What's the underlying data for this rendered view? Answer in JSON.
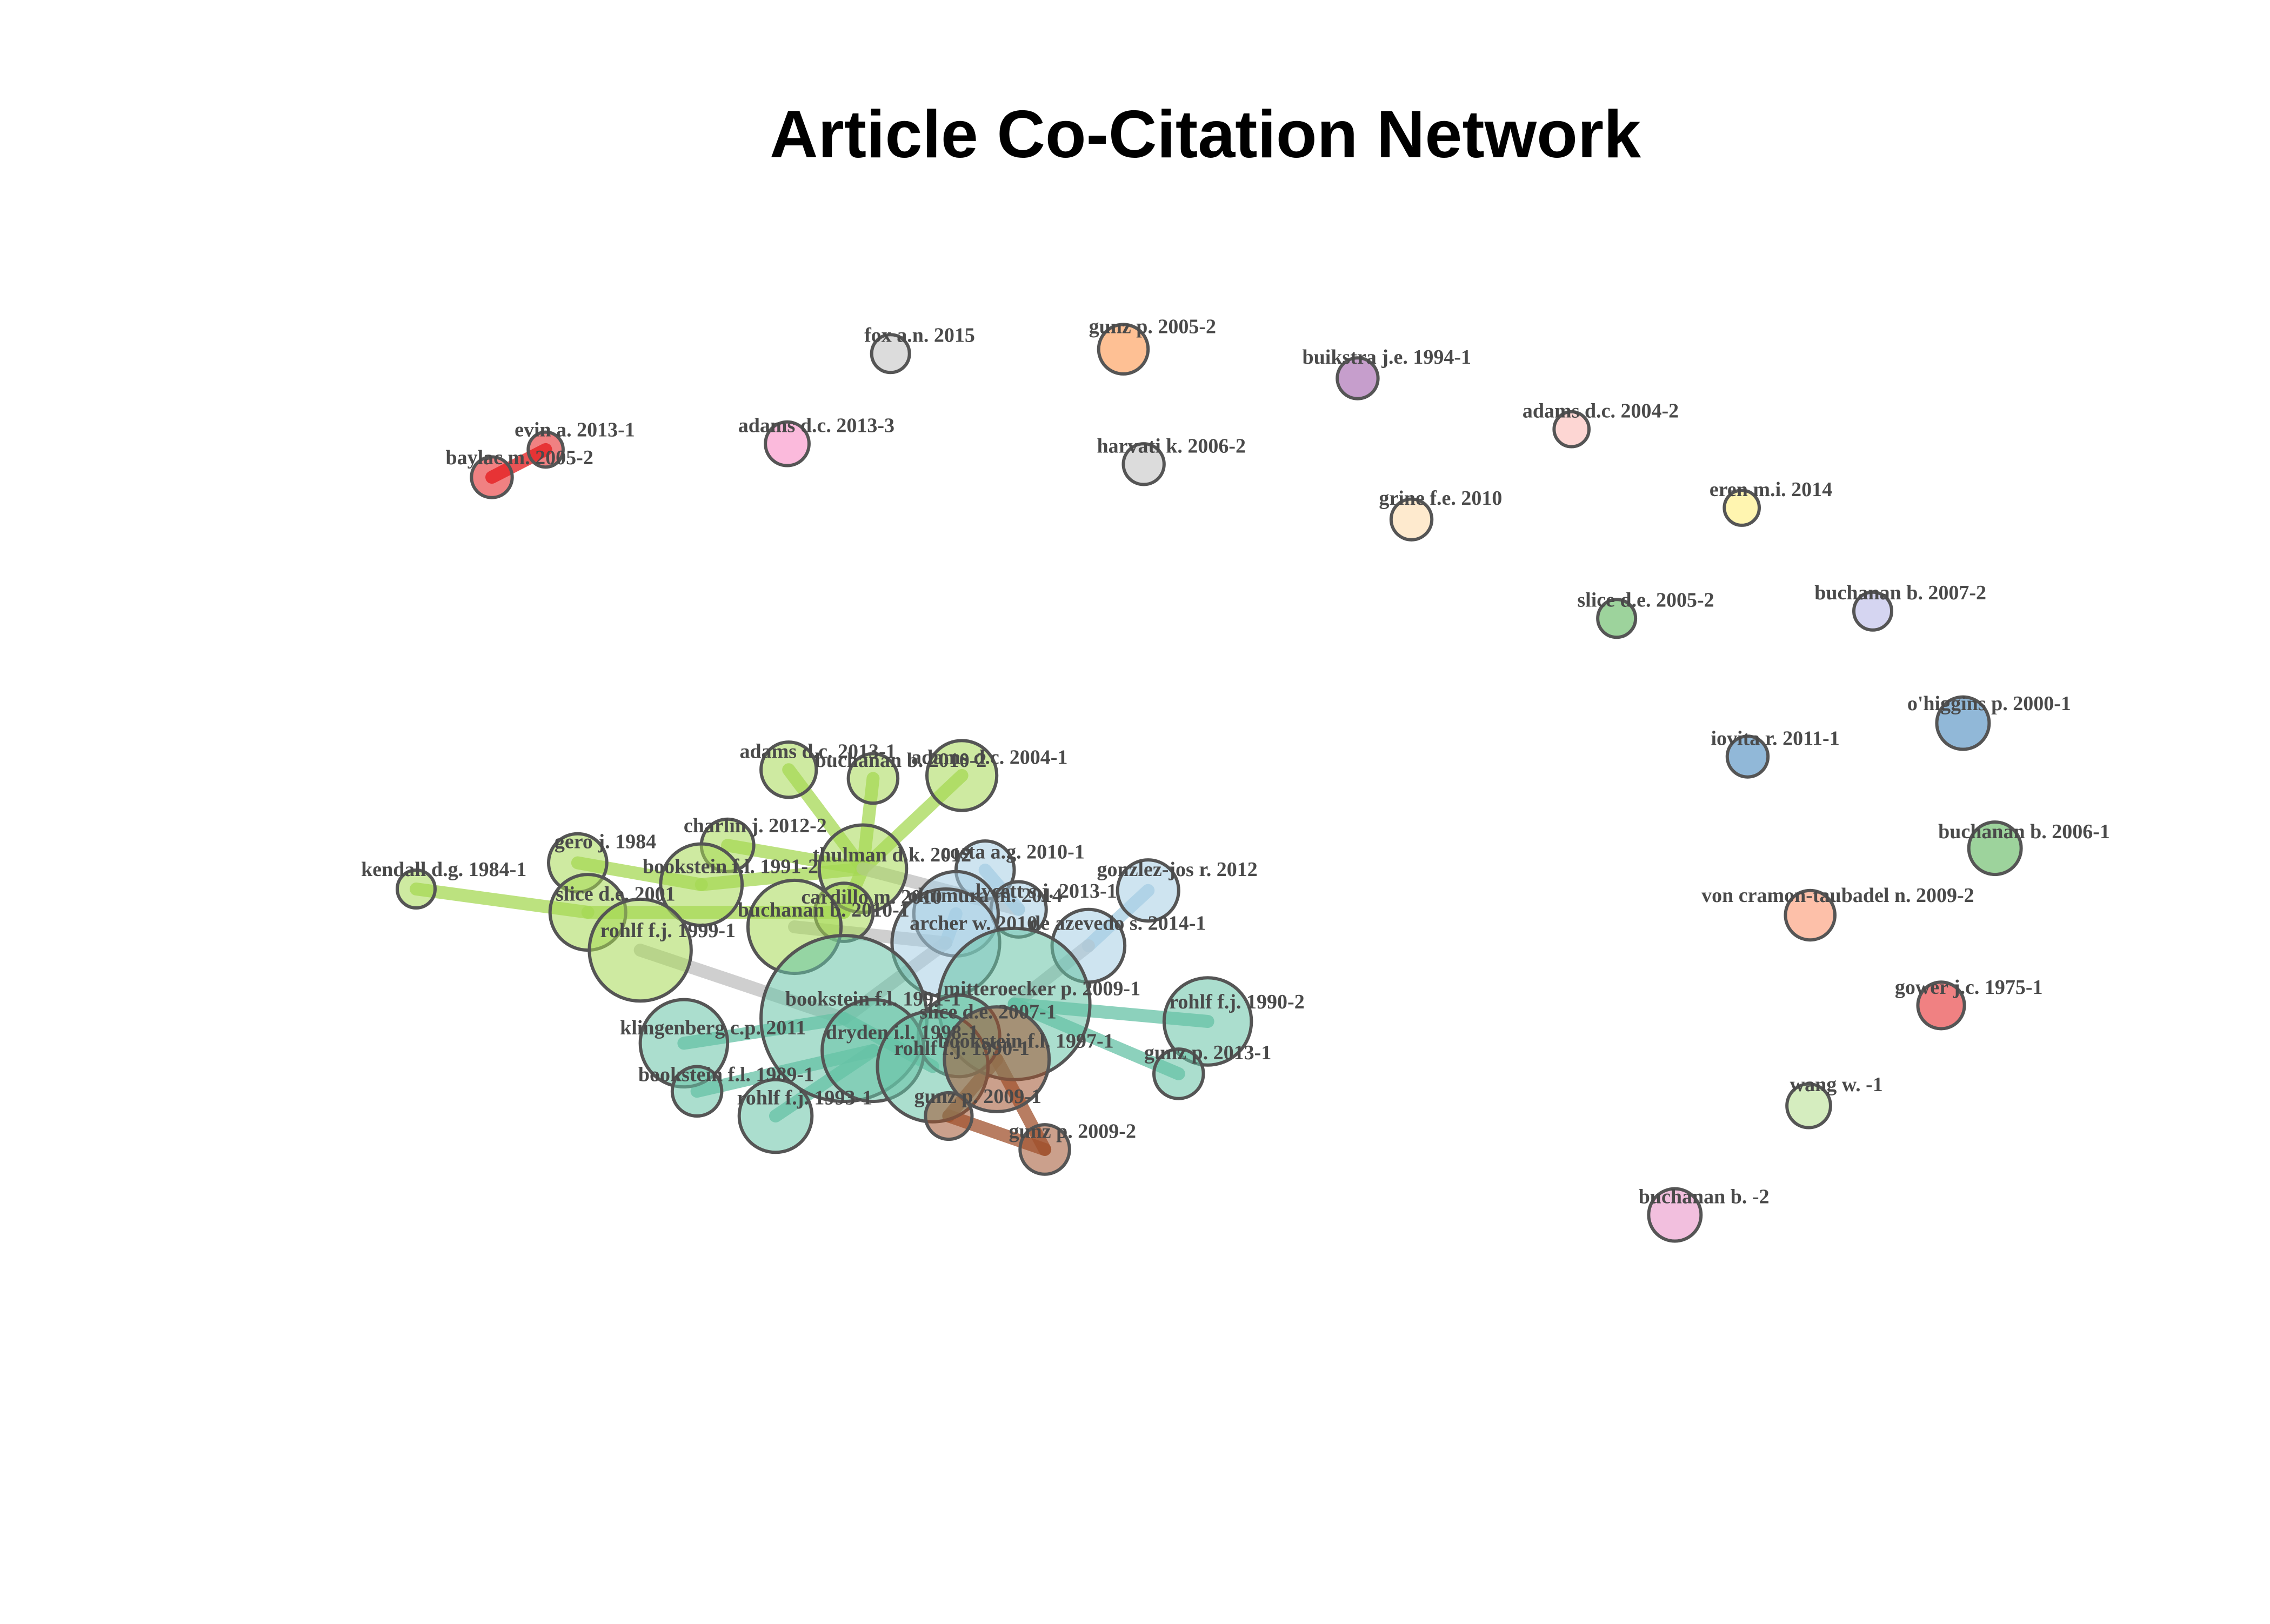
{
  "title": "Article Co-Citation Network",
  "nodes": [
    {
      "id": "evin-2013-1",
      "label": "evin a. 2013-1",
      "color": "#e41a1c"
    },
    {
      "id": "baylac-2005-2",
      "label": "baylac m. 2005-2",
      "color": "#e41a1c"
    },
    {
      "id": "adams-2013-3",
      "label": "adams d.c. 2013-3",
      "color": "#f781bf"
    },
    {
      "id": "fox-2015",
      "label": "fox a.n. 2015",
      "color": "#bfbfbf"
    },
    {
      "id": "gunz-2005-2",
      "label": "gunz p. 2005-2",
      "color": "#fd8d3c"
    },
    {
      "id": "harvati-2006-2",
      "label": "harvati k. 2006-2",
      "color": "#bfbfbf"
    },
    {
      "id": "buikstra-1994-1",
      "label": "buikstra j.e. 1994-1",
      "color": "#984ea3"
    },
    {
      "id": "adams-2004-2",
      "label": "adams d.c. 2004-2",
      "color": "#fbb4ae"
    },
    {
      "id": "grine-2010",
      "label": "grine f.e. 2010",
      "color": "#fed9a6"
    },
    {
      "id": "eren-2014",
      "label": "eren m.i. 2014",
      "color": "#ffed6f"
    },
    {
      "id": "slice-2005-2",
      "label": "slice d.e. 2005-2",
      "color": "#4daf4a"
    },
    {
      "id": "buchanan-2007-2",
      "label": "buchanan b. 2007-2",
      "color": "#b3b3e6"
    },
    {
      "id": "ohiggins-2000-1",
      "label": "o'higgins p. 2000-1",
      "color": "#377eb8"
    },
    {
      "id": "iovita-2011-1",
      "label": "iovita r. 2011-1",
      "color": "#377eb8"
    },
    {
      "id": "buchanan-2006-1",
      "label": "buchanan b. 2006-1",
      "color": "#4daf4a"
    },
    {
      "id": "voncramon-2009-2",
      "label": "von cramon-taubadel n. 2009-2",
      "color": "#fc8d62"
    },
    {
      "id": "gower-1975-1",
      "label": "gower j.c. 1975-1",
      "color": "#e41a1c"
    },
    {
      "id": "wang-1",
      "label": "wang w. -1",
      "color": "#b2df8a"
    },
    {
      "id": "buchanan-2",
      "label": "buchanan b. -2",
      "color": "#e78ac3"
    },
    {
      "id": "adams-2013-1",
      "label": "adams d.c. 2013-1",
      "color": "#a6d854"
    },
    {
      "id": "buchanan-2010-2",
      "label": "buchanan b. 2010-2",
      "color": "#a6d854"
    },
    {
      "id": "adams-2004-1",
      "label": "adams d.c. 2004-1",
      "color": "#a6d854"
    },
    {
      "id": "charlin-2012-2",
      "label": "charlin j. 2012-2",
      "color": "#a6d854"
    },
    {
      "id": "gero-1984",
      "label": "gero j. 1984",
      "color": "#a6d854"
    },
    {
      "id": "kendall-1984-1",
      "label": "kendall d.g. 1984-1",
      "color": "#a6d854"
    },
    {
      "id": "slice-2001",
      "label": "slice d.e. 2001",
      "color": "#a6d854"
    },
    {
      "id": "bookstein-1991-2",
      "label": "bookstein f.l. 1991-2",
      "color": "#a6d854"
    },
    {
      "id": "thulman-2012",
      "label": "thulman d.k. 2012",
      "color": "#a6d854"
    },
    {
      "id": "cardillo-2010",
      "label": "cardillo m. 2010",
      "color": "#a6d854"
    },
    {
      "id": "buchanan-2010-1",
      "label": "buchanan b. 2010-1",
      "color": "#a6d854"
    },
    {
      "id": "rohlf-1999-1",
      "label": "rohlf f.j. 1999-1",
      "color": "#a6d854"
    },
    {
      "id": "costa-2010-1",
      "label": "costa a.g. 2010-1",
      "color": "#a6cee3"
    },
    {
      "id": "gonzalez-2012",
      "label": "gonzlez-jos r. 2012",
      "color": "#a6cee3"
    },
    {
      "id": "lycett-2013-1",
      "label": "lycett s.j. 2013-1",
      "color": "#a6cee3"
    },
    {
      "id": "okumura-2014",
      "label": "okumura m. 2014",
      "color": "#a6cee3"
    },
    {
      "id": "archer-2010",
      "label": "archer w. 2010",
      "color": "#a6cee3"
    },
    {
      "id": "azevedo-2014-1",
      "label": "de azevedo s. 2014-1",
      "color": "#a6cee3"
    },
    {
      "id": "mitteroecker-2009-1",
      "label": "mitteroecker p. 2009-1",
      "color": "#66c2a5"
    },
    {
      "id": "bookstein-1991-1",
      "label": "bookstein f.l. 1991-1",
      "color": "#66c2a5"
    },
    {
      "id": "slice-2007-1",
      "label": "slice d.e. 2007-1",
      "color": "#66c2a5"
    },
    {
      "id": "dryden-1998-1",
      "label": "dryden i.l. 1998-1",
      "color": "#66c2a5"
    },
    {
      "id": "rohlf-1990-1",
      "label": "rohlf f.j. 1990-1",
      "color": "#66c2a5"
    },
    {
      "id": "bookstein-1997-1",
      "label": "bookstein f.l. 1997-1",
      "color": "#a0522d"
    },
    {
      "id": "klingenberg-2011",
      "label": "klingenberg c.p. 2011",
      "color": "#66c2a5"
    },
    {
      "id": "rohlf-1990-2",
      "label": "rohlf f.j. 1990-2",
      "color": "#66c2a5"
    },
    {
      "id": "gunz-2013-1",
      "label": "gunz p. 2013-1",
      "color": "#66c2a5"
    },
    {
      "id": "bookstein-1989-1",
      "label": "bookstein f.l. 1989-1",
      "color": "#66c2a5"
    },
    {
      "id": "rohlf-1993-1",
      "label": "rohlf f.j. 1993-1",
      "color": "#66c2a5"
    },
    {
      "id": "gunz-2009-1",
      "label": "gunz p. 2009-1",
      "color": "#a0522d"
    },
    {
      "id": "gunz-2009-2",
      "label": "gunz p. 2009-2",
      "color": "#a0522d"
    }
  ],
  "edges": [
    {
      "source": "evin-2013-1",
      "target": "baylac-2005-2",
      "color": "#e41a1c"
    },
    {
      "source": "kendall-1984-1",
      "target": "slice-2001",
      "color": "#a6d854"
    },
    {
      "source": "gero-1984",
      "target": "bookstein-1991-2",
      "color": "#a6d854"
    },
    {
      "source": "charlin-2012-2",
      "target": "thulman-2012",
      "color": "#a6d854"
    },
    {
      "source": "adams-2013-1",
      "target": "thulman-2012",
      "color": "#a6d854"
    },
    {
      "source": "buchanan-2010-2",
      "target": "thulman-2012",
      "color": "#a6d854"
    },
    {
      "source": "adams-2004-1",
      "target": "thulman-2012",
      "color": "#a6d854"
    },
    {
      "source": "slice-2001",
      "target": "cardillo-2010",
      "color": "#a6d854"
    },
    {
      "source": "bookstein-1991-2",
      "target": "thulman-2012",
      "color": "#a6d854"
    },
    {
      "source": "cardillo-2010",
      "target": "thulman-2012",
      "color": "#a6d854"
    },
    {
      "source": "rohlf-1999-1",
      "target": "bookstein-1991-1",
      "color": "#bfbfbf"
    },
    {
      "source": "thulman-2012",
      "target": "lycett-2013-1",
      "color": "#bfbfbf"
    },
    {
      "source": "buchanan-2010-1",
      "target": "archer-2010",
      "color": "#bfbfbf"
    },
    {
      "source": "costa-2010-1",
      "target": "lycett-2013-1",
      "color": "#a6cee3"
    },
    {
      "source": "gonzalez-2012",
      "target": "azevedo-2014-1",
      "color": "#a6cee3"
    },
    {
      "source": "okumura-2014",
      "target": "archer-2010",
      "color": "#a6cee3"
    },
    {
      "source": "archer-2010",
      "target": "bookstein-1991-1",
      "color": "#bfbfbf"
    },
    {
      "source": "azevedo-2014-1",
      "target": "mitteroecker-2009-1",
      "color": "#bfbfbf"
    },
    {
      "source": "mitteroecker-2009-1",
      "target": "rohlf-1990-2",
      "color": "#66c2a5"
    },
    {
      "source": "mitteroecker-2009-1",
      "target": "gunz-2013-1",
      "color": "#66c2a5"
    },
    {
      "source": "klingenberg-2011",
      "target": "bookstein-1991-1",
      "color": "#66c2a5"
    },
    {
      "source": "bookstein-1989-1",
      "target": "dryden-1998-1",
      "color": "#66c2a5"
    },
    {
      "source": "rohlf-1993-1",
      "target": "dryden-1998-1",
      "color": "#66c2a5"
    },
    {
      "source": "bookstein-1991-1",
      "target": "rohlf-1990-1",
      "color": "#66c2a5"
    },
    {
      "source": "bookstein-1997-1",
      "target": "gunz-2009-1",
      "color": "#a0522d"
    },
    {
      "source": "bookstein-1997-1",
      "target": "gunz-2009-2",
      "color": "#a0522d"
    },
    {
      "source": "gunz-2009-1",
      "target": "gunz-2009-2",
      "color": "#a0522d"
    }
  ]
}
